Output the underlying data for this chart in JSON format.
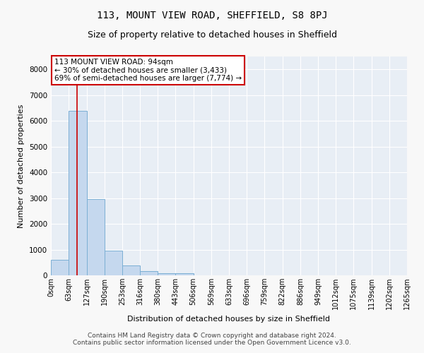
{
  "title": "113, MOUNT VIEW ROAD, SHEFFIELD, S8 8PJ",
  "subtitle": "Size of property relative to detached houses in Sheffield",
  "xlabel": "Distribution of detached houses by size in Sheffield",
  "ylabel": "Number of detached properties",
  "bin_edges": [
    0,
    63,
    127,
    190,
    253,
    316,
    380,
    443,
    506,
    569,
    633,
    696,
    759,
    822,
    886,
    949,
    1012,
    1075,
    1139,
    1202,
    1265
  ],
  "bar_heights": [
    600,
    6400,
    2950,
    960,
    380,
    175,
    90,
    70,
    0,
    0,
    0,
    0,
    0,
    0,
    0,
    0,
    0,
    0,
    0,
    0
  ],
  "bar_color": "#c5d8ee",
  "bar_edge_color": "#7bafd4",
  "property_size": 94,
  "vline_color": "#cc0000",
  "ylim": [
    0,
    8500
  ],
  "yticks": [
    0,
    1000,
    2000,
    3000,
    4000,
    5000,
    6000,
    7000,
    8000
  ],
  "annotation_text": "113 MOUNT VIEW ROAD: 94sqm\n← 30% of detached houses are smaller (3,433)\n69% of semi-detached houses are larger (7,774) →",
  "annotation_box_color": "#ffffff",
  "annotation_border_color": "#cc0000",
  "footer_line1": "Contains HM Land Registry data © Crown copyright and database right 2024.",
  "footer_line2": "Contains public sector information licensed under the Open Government Licence v3.0.",
  "fig_bg_color": "#f8f8f8",
  "plot_bg_color": "#e8eef5",
  "grid_color": "#ffffff",
  "title_fontsize": 10,
  "subtitle_fontsize": 9,
  "tick_label_fontsize": 7,
  "ylabel_fontsize": 8,
  "xlabel_fontsize": 8,
  "footer_fontsize": 6.5,
  "annotation_fontsize": 7.5
}
